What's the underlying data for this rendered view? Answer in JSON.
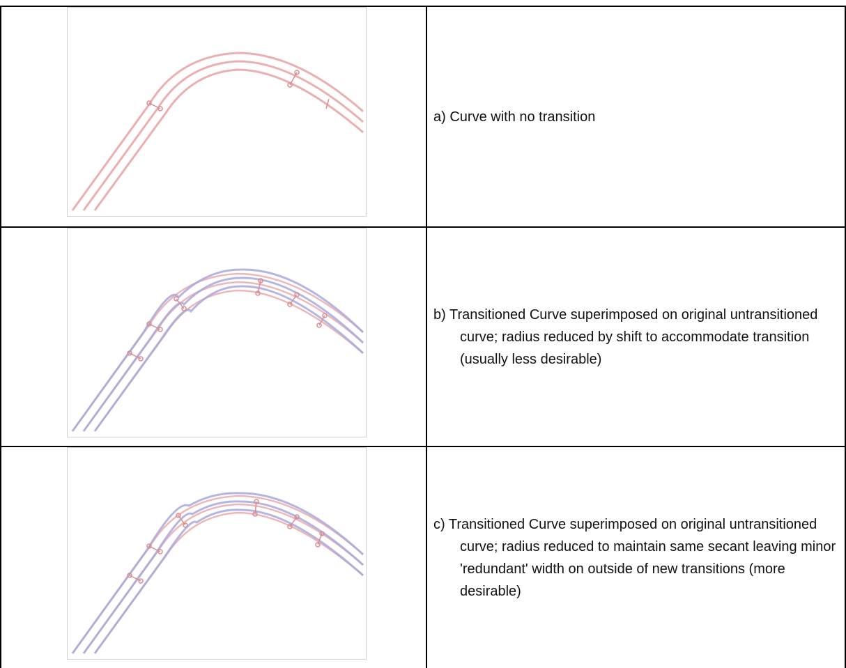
{
  "rows": [
    {
      "id": "a",
      "caption": "a) Curve with no transition",
      "variant": "no-transition"
    },
    {
      "id": "b",
      "caption": "b) Transitioned Curve superimposed on original untransitioned curve; radius reduced by shift to accommodate transition (usually less desirable)",
      "variant": "shift"
    },
    {
      "id": "c",
      "caption": "c) Transitioned Curve superimposed on original untransitioned curve; radius reduced to maintain same secant leaving minor 'redundant' width on outside of new transitions (more desirable)",
      "variant": "secant"
    }
  ],
  "colors": {
    "original": "#e8a0a4",
    "transitioned": "#a9a9dc",
    "marker": "#d98c90",
    "border": "#000000",
    "panel_border": "#d0d0d0"
  }
}
